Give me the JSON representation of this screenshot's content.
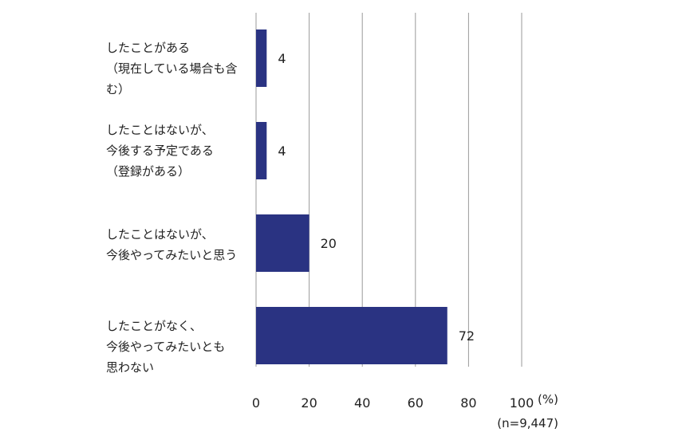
{
  "chart_data": {
    "type": "bar",
    "orientation": "horizontal",
    "categories": [
      "したことがある\n（現在している場合も含む）",
      "したことはないが、\n今後する予定である\n（登録がある）",
      "したことはないが、\n今後やってみたいと思う",
      "したことがなく、\n今後やってみたいとも\n思わない"
    ],
    "values": [
      4,
      4,
      20,
      72
    ],
    "value_labels": [
      "4",
      "4",
      "20",
      "72"
    ],
    "xlim": [
      0,
      100
    ],
    "xticks": [
      0,
      20,
      40,
      60,
      80,
      100
    ],
    "unit_label": "(%)",
    "grid": true,
    "bar_color": "#2a3382",
    "grid_color": "#9a9a9a"
  },
  "note": "(n=9,447)"
}
